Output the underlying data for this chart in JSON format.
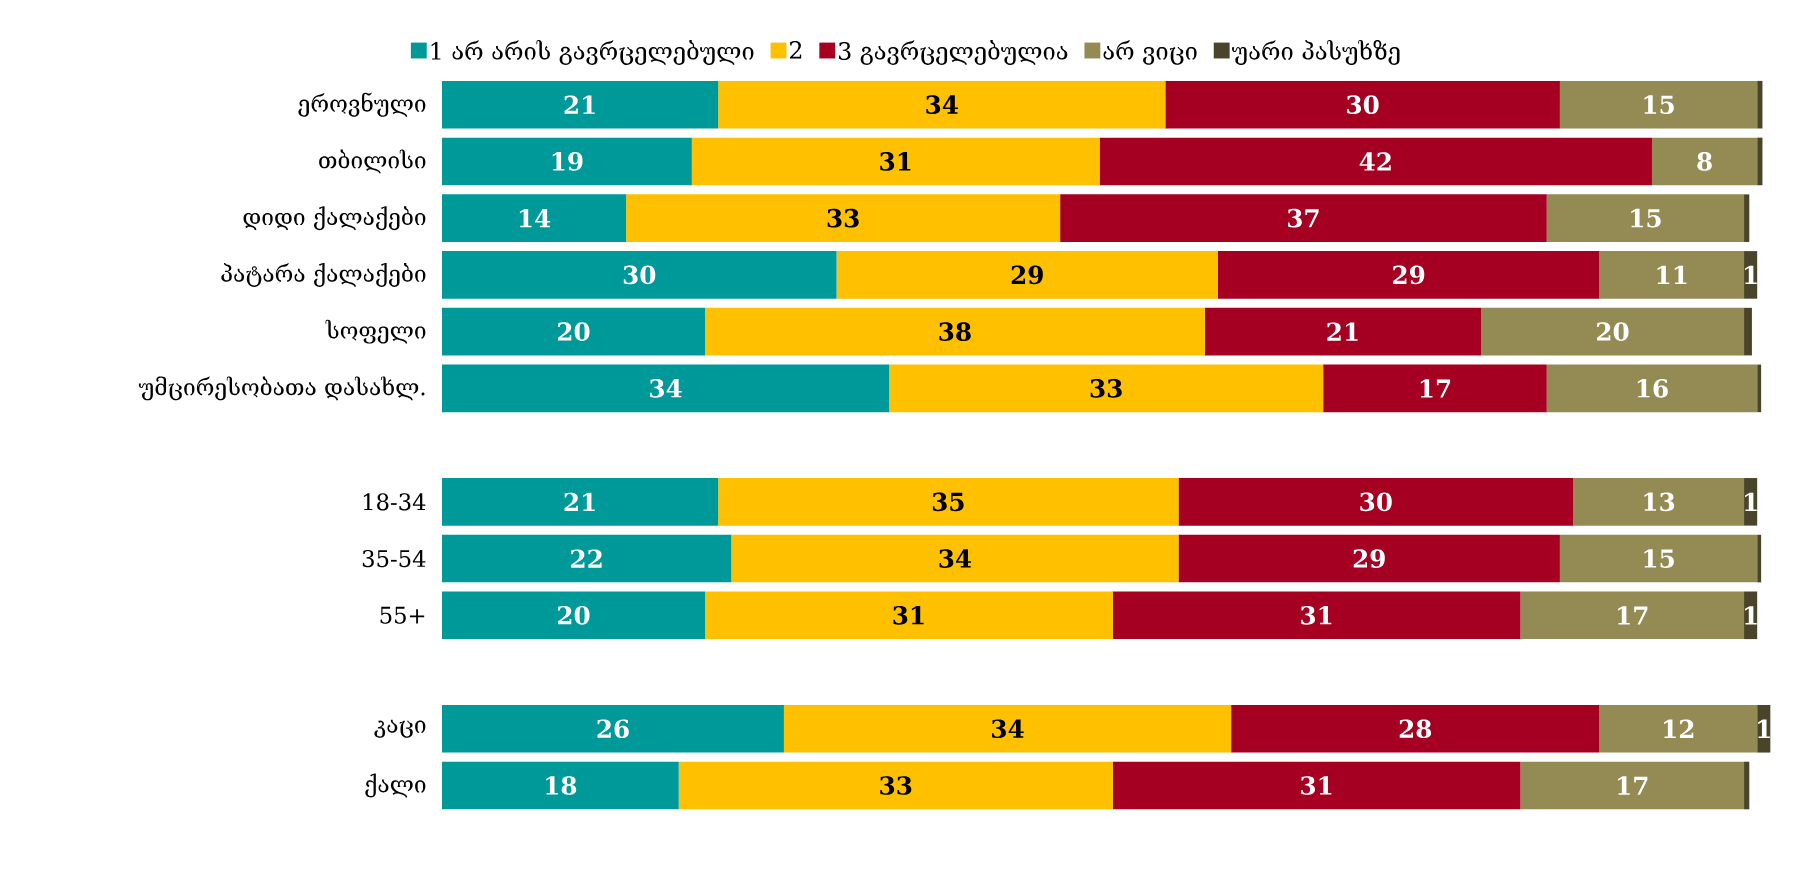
{
  "chart_data": {
    "type": "bar",
    "orientation": "horizontal",
    "stacked": true,
    "legend": "top",
    "categories": [
      "ეროვნული",
      "თბილისი",
      "დიდი ქალაქები",
      "პატარა ქალაქები",
      "სოფელი",
      "უმცირესობათა დასახლ.",
      null,
      "18-34",
      "35-54",
      "55+",
      null,
      "კაცი",
      "ქალი"
    ],
    "series": [
      {
        "name": "1 არ არის გავრცელებული",
        "color": "#009999",
        "values": [
          21,
          19,
          14,
          30,
          20,
          34,
          null,
          21,
          22,
          20,
          null,
          26,
          18
        ],
        "value_labels": [
          "21",
          "19",
          "14",
          "30",
          "20",
          "34",
          null,
          "21",
          "22",
          "20",
          null,
          "26",
          "18"
        ]
      },
      {
        "name": "2",
        "color": "#ffc000",
        "values": [
          34,
          31,
          33,
          29,
          38,
          33,
          null,
          35,
          34,
          31,
          null,
          34,
          33
        ],
        "value_labels": [
          "34",
          "31",
          "33",
          "29",
          "38",
          "33",
          null,
          "35",
          "34",
          "31",
          null,
          "34",
          "33"
        ]
      },
      {
        "name": "3 გავრცელებულია",
        "color": "#a50021",
        "values": [
          30,
          42,
          37,
          29,
          21,
          17,
          null,
          30,
          29,
          31,
          null,
          28,
          31
        ],
        "value_labels": [
          "30",
          "42",
          "37",
          "29",
          "21",
          "17",
          null,
          "30",
          "29",
          "31",
          null,
          "28",
          "31"
        ]
      },
      {
        "name": "არ ვიცი",
        "color": "#948a54",
        "values": [
          15,
          8,
          15,
          11,
          20,
          16,
          null,
          13,
          15,
          17,
          null,
          12,
          17
        ],
        "value_labels": [
          "15",
          "8",
          "15",
          "11",
          "20",
          "16",
          null,
          "13",
          "15",
          "17",
          null,
          "12",
          "17"
        ]
      },
      {
        "name": "უარი პასუხზე",
        "color": "#4a452a",
        "values": [
          0.4,
          0.4,
          0.4,
          1,
          0.6,
          0.3,
          null,
          1,
          0.3,
          1,
          null,
          1,
          0.4
        ],
        "value_labels": [
          null,
          null,
          null,
          "1",
          null,
          null,
          null,
          "1",
          null,
          "1",
          null,
          "1",
          null
        ]
      }
    ]
  }
}
